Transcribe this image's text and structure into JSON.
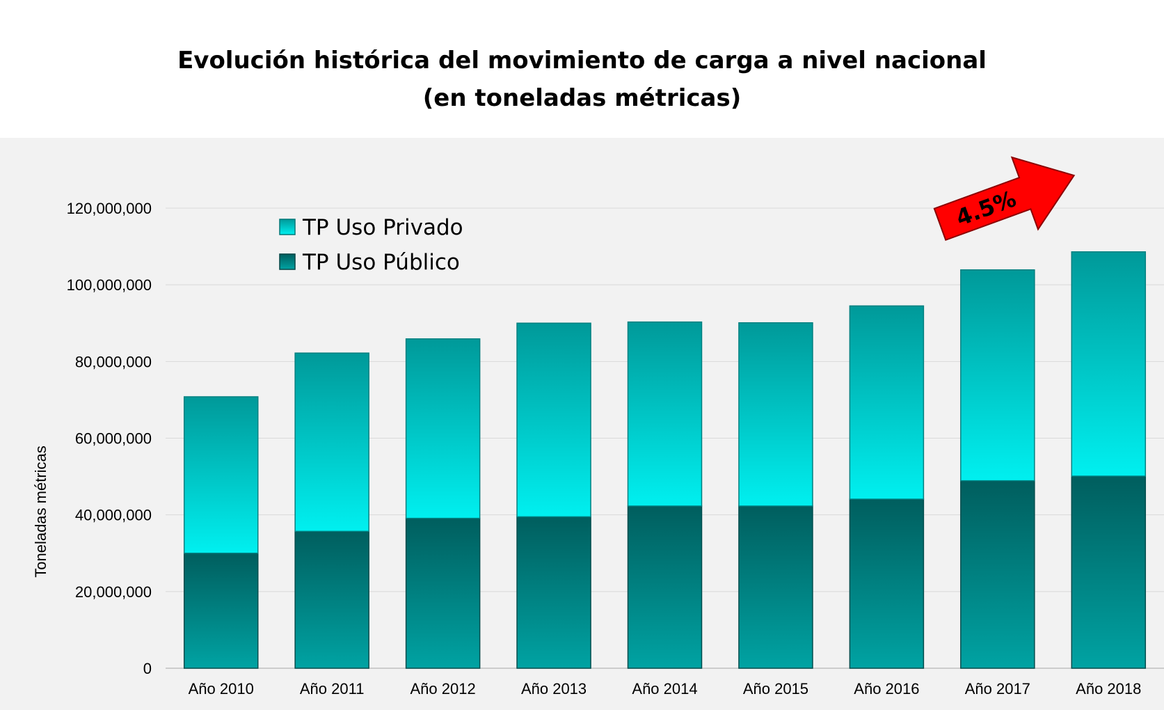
{
  "chart_data": {
    "type": "bar",
    "stacked": true,
    "title": "Evolución histórica del movimiento de carga a nivel nacional",
    "subtitle": "(en toneladas métricas)",
    "xlabel": "",
    "ylabel": "Toneladas métricas",
    "ylim": [
      0,
      120000000
    ],
    "yticks": [
      "0",
      "20,000,000",
      "40,000,000",
      "60,000,000",
      "80,000,000",
      "100,000,000",
      "120,000,000"
    ],
    "ytick_values": [
      0,
      20000000,
      40000000,
      60000000,
      80000000,
      100000000,
      120000000
    ],
    "categories": [
      "Año 2010",
      "Año 2011",
      "Año 2012",
      "Año 2013",
      "Año 2014",
      "Año 2015",
      "Año 2016",
      "Año 2017",
      "Año 2018"
    ],
    "series": [
      {
        "name": "TP Uso Público",
        "color": "#006b6b",
        "values": [
          30000000,
          35700000,
          39100000,
          39500000,
          42300000,
          42300000,
          44100000,
          48900000,
          50100000
        ]
      },
      {
        "name": "TP Uso Privado",
        "color": "#00e6e6",
        "values": [
          40800000,
          46500000,
          46800000,
          50500000,
          48000000,
          47800000,
          50400000,
          55000000,
          58500000
        ]
      }
    ],
    "grid": true,
    "legend": "top-left",
    "annotation": {
      "text": "4.5%",
      "color": "#ff0000"
    }
  }
}
